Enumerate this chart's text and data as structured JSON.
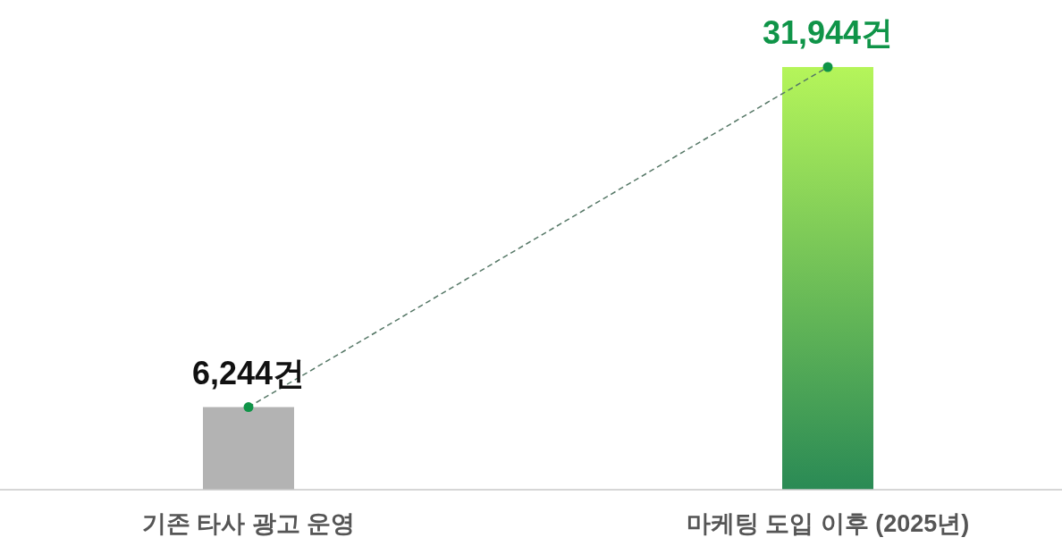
{
  "chart_data": {
    "type": "bar",
    "categories": [
      "기존 타사 광고 운영",
      "마케팅 도입 이후 (2025년)"
    ],
    "series": [
      {
        "colors": [
          "#b3b3b3",
          "#2a8a55"
        ],
        "values": [
          6244,
          31944
        ],
        "value_labels": [
          "6,244건",
          "31,944건"
        ]
      },
      {
        "type": "line",
        "color": "#0f9448",
        "values": [
          6244,
          31944
        ],
        "line_style": "dashed",
        "marker": "circle"
      }
    ]
  }
}
